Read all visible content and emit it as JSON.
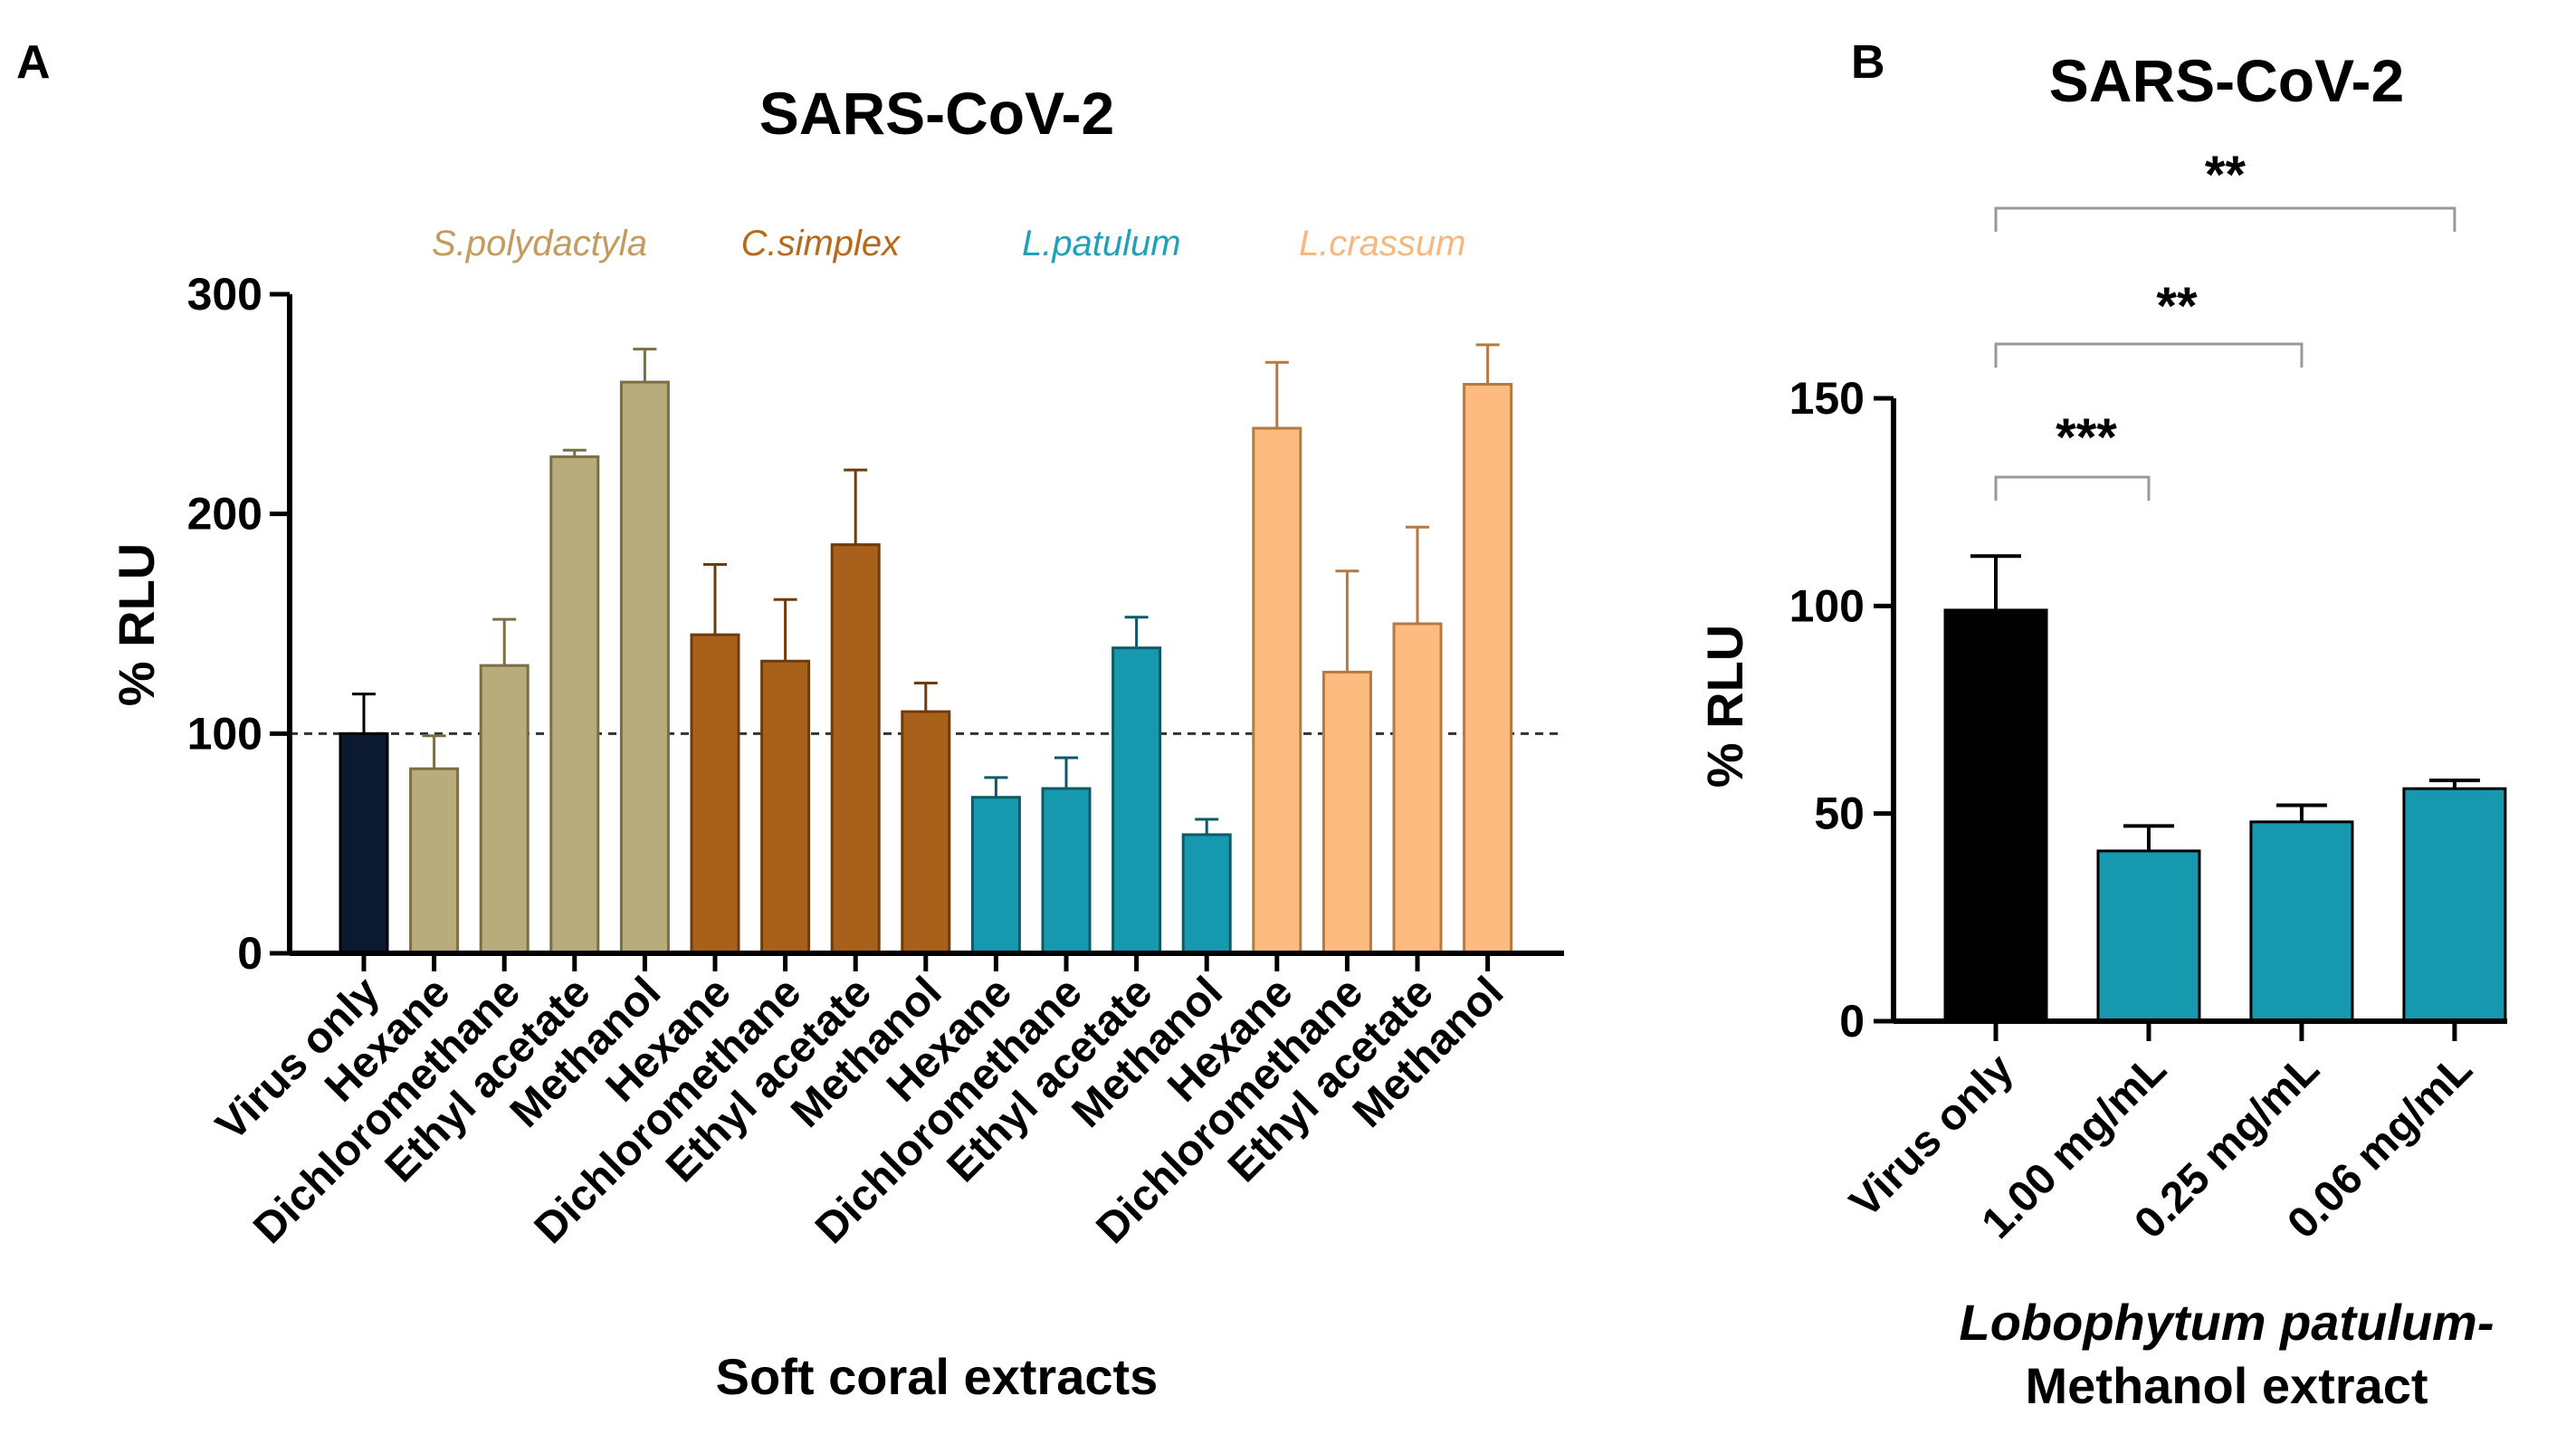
{
  "chart_data": [
    {
      "panel": "A",
      "type": "bar",
      "title": "SARS-CoV-2",
      "xlabel": "Soft coral extracts",
      "ylabel": "% RLU",
      "ylim": [
        0,
        300
      ],
      "yticks": [
        0,
        100,
        200,
        300
      ],
      "reference_line": 100,
      "categories": [
        "Virus only",
        "Hexane",
        "Dichloromethane",
        "Ethyl acetate",
        "Methanol",
        "Hexane",
        "Dichloromethane",
        "Ethyl acetate",
        "Methanol",
        "Hexane",
        "Dichloromethane",
        "Ethyl acetate",
        "Methanol",
        "Hexane",
        "Dichloromethane",
        "Ethyl acetate",
        "Methanol"
      ],
      "values": [
        100,
        84,
        131,
        226,
        260,
        145,
        133,
        186,
        110,
        71,
        75,
        139,
        54,
        239,
        128,
        150,
        259
      ],
      "errors": [
        18,
        15,
        21,
        3,
        15,
        32,
        28,
        34,
        13,
        9,
        14,
        14,
        7,
        30,
        46,
        44,
        18
      ],
      "bar_groups": [
        0,
        1,
        1,
        1,
        1,
        2,
        2,
        2,
        2,
        3,
        3,
        3,
        3,
        4,
        4,
        4,
        4
      ],
      "groups": [
        {
          "label": "S.polydactyla",
          "color": "#C39B5C",
          "fill": "#B8AC7C",
          "edge": "#7A6E44"
        },
        {
          "label": "C.simplex",
          "color": "#B86A1C",
          "fill": "#A9601A",
          "edge": "#6E3C0C"
        },
        {
          "label": "L.patulum",
          "color": "#1FA2B8",
          "fill": "#1699AF",
          "edge": "#0C5A68"
        },
        {
          "label": "L.crassum",
          "color": "#F5B87E",
          "fill": "#FDBB7F",
          "edge": "#B47A40"
        }
      ],
      "virus_fill": "#0B1A2E"
    },
    {
      "panel": "B",
      "type": "bar",
      "title": "SARS-CoV-2",
      "xlabel_line1": "Lobophytum patulum-",
      "xlabel_line2": "Methanol extract",
      "ylabel": "% RLU",
      "ylim": [
        0,
        150
      ],
      "yticks": [
        0,
        50,
        100,
        150
      ],
      "categories": [
        "Virus only",
        "1.00 mg/mL",
        "0.25 mg/mL",
        "0.06 mg/mL"
      ],
      "values": [
        99,
        41,
        48,
        56
      ],
      "errors": [
        13,
        6,
        4,
        2
      ],
      "colors": [
        "#000000",
        "#1699AF",
        "#1699AF",
        "#1699AF"
      ],
      "significance": [
        {
          "from": 0,
          "to": 1,
          "label": "***"
        },
        {
          "from": 0,
          "to": 2,
          "label": "**"
        },
        {
          "from": 0,
          "to": 3,
          "label": "**"
        }
      ]
    }
  ]
}
